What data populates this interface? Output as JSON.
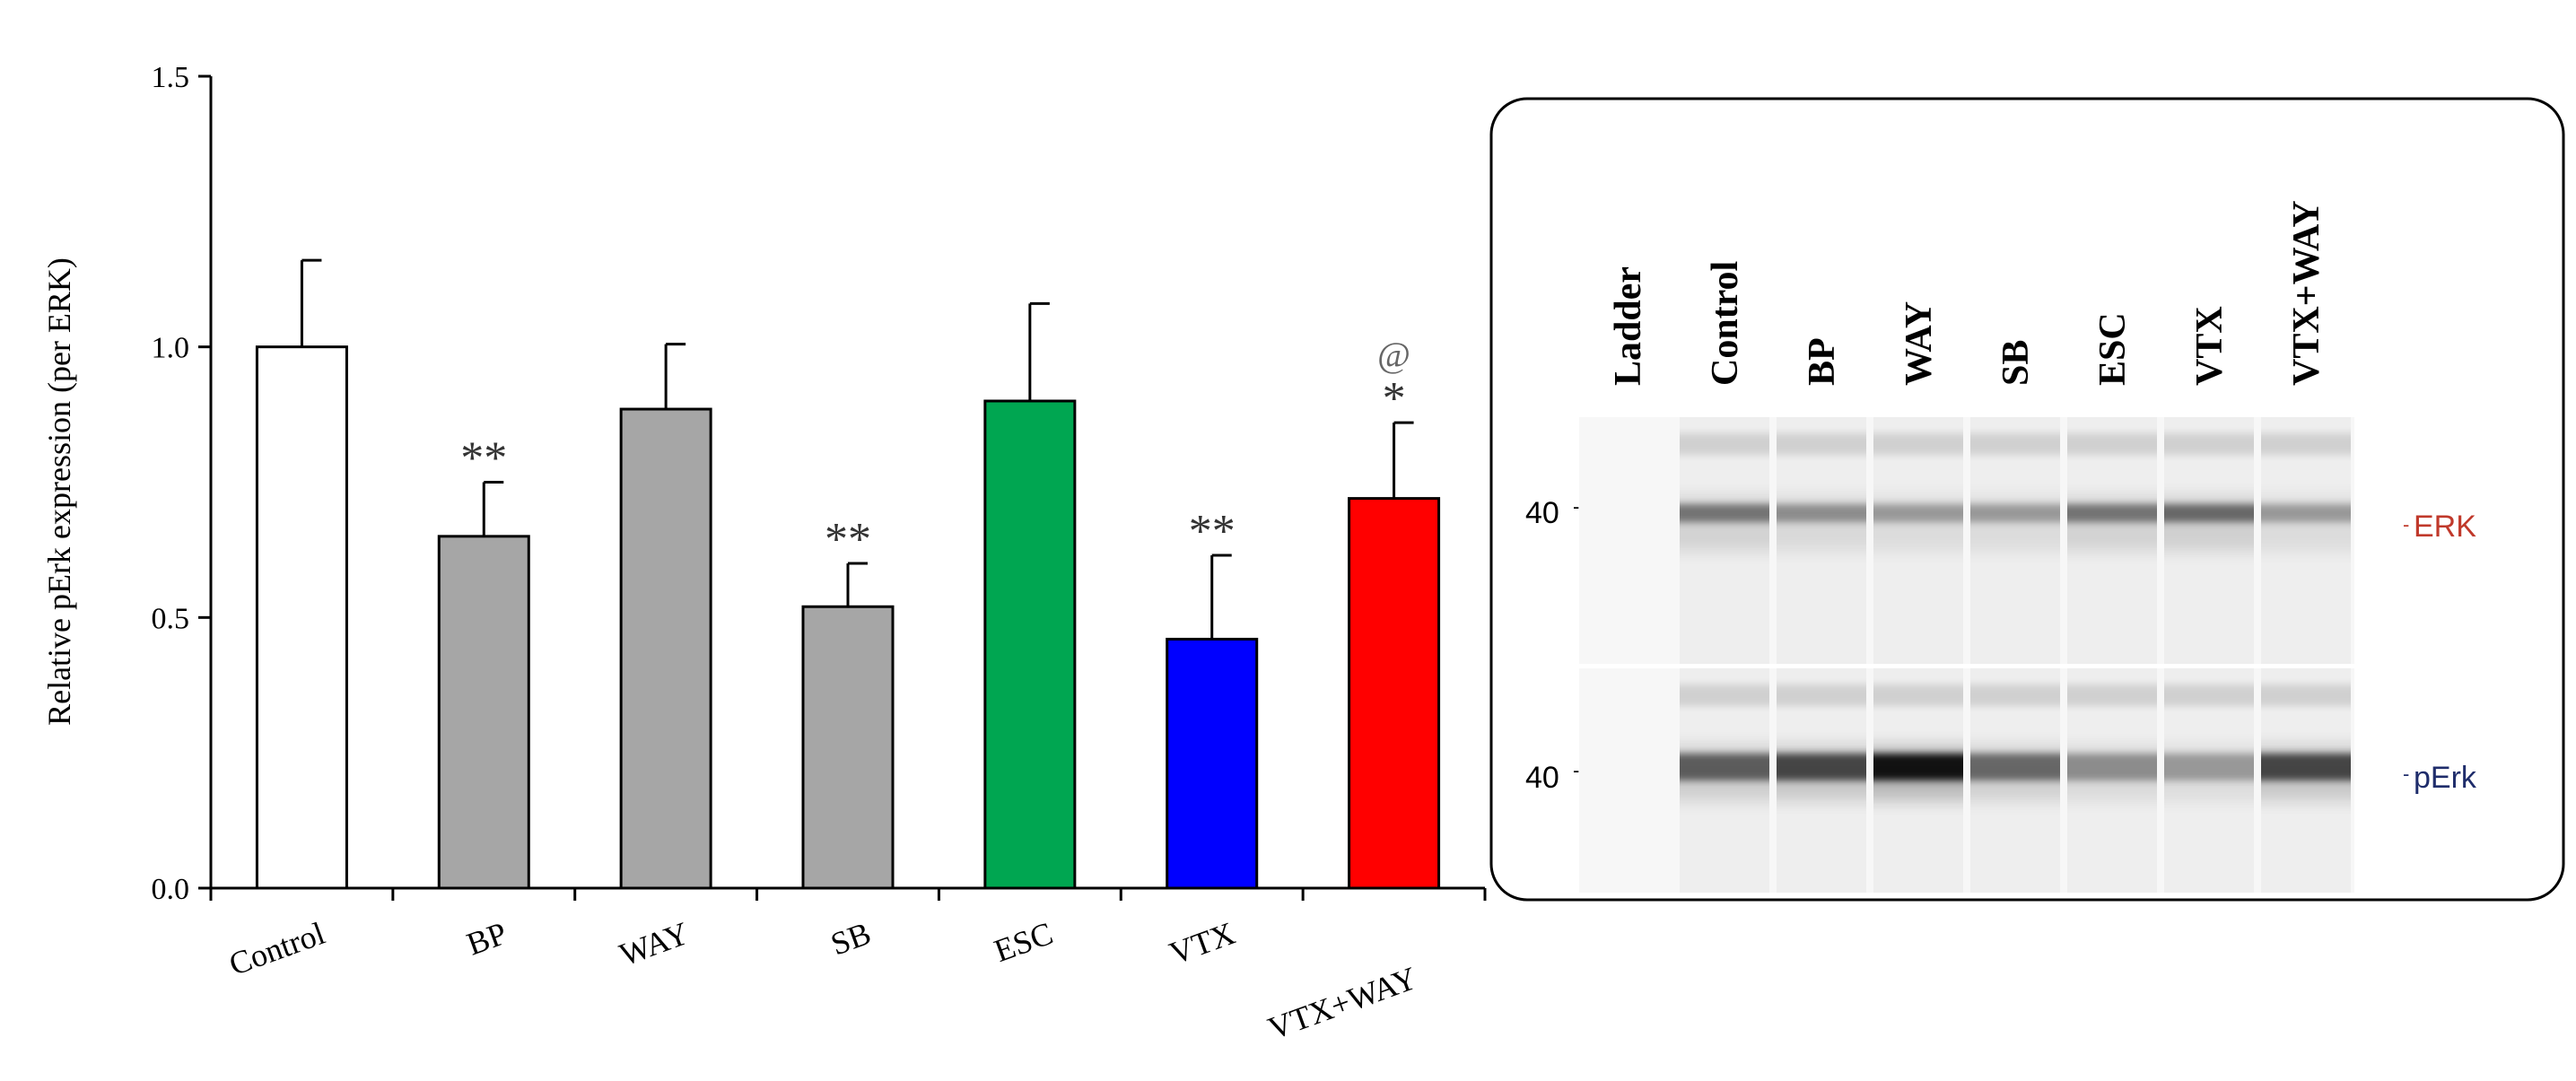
{
  "chart_data": {
    "type": "bar",
    "ylabel": "Relative  pErk expression (per ERK)",
    "xlabel": "",
    "title": "",
    "ylim": [
      0.0,
      1.5
    ],
    "yticks": [
      "0.0",
      "0.5",
      "1.0",
      "1.5"
    ],
    "ytick_values": [
      0.0,
      0.5,
      1.0,
      1.5
    ],
    "grid": false,
    "categories": [
      "Control",
      "BP",
      "WAY",
      "SB",
      "ESC",
      "VTX",
      "VTX+WAY"
    ],
    "values": [
      1.0,
      0.65,
      0.885,
      0.52,
      0.9,
      0.46,
      0.72
    ],
    "errors": [
      0.16,
      0.1,
      0.12,
      0.08,
      0.18,
      0.155,
      0.14
    ],
    "colors": [
      "#ffffff",
      "#a6a6a6",
      "#a6a6a6",
      "#a6a6a6",
      "#00a651",
      "#0000ff",
      "#ff0000"
    ],
    "annotations": [
      "",
      "**",
      "",
      "**",
      "",
      "**",
      "*"
    ],
    "extra_annotations": [
      "",
      "",
      "",
      "",
      "",
      "",
      "@"
    ]
  },
  "blot": {
    "lanes": [
      "Ladder",
      "Control",
      "BP",
      "WAY",
      "SB",
      "ESC",
      "VTX",
      "VTX+WAY"
    ],
    "marker_top": "40",
    "marker_bottom": "40",
    "label_top": "ERK",
    "label_bottom": "pErk",
    "erk_intensity": [
      0.0,
      0.45,
      0.35,
      0.3,
      0.3,
      0.45,
      0.5,
      0.3
    ],
    "perk_intensity": [
      0.0,
      0.55,
      0.65,
      0.9,
      0.5,
      0.35,
      0.3,
      0.65
    ]
  }
}
